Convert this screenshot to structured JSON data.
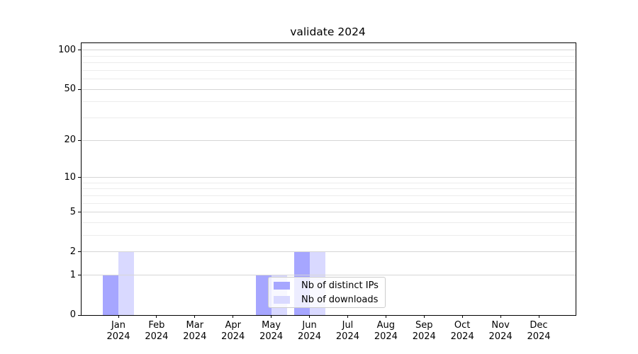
{
  "chart_data": {
    "type": "bar",
    "title": "validate 2024",
    "months": [
      "Jan",
      "Feb",
      "Mar",
      "Apr",
      "May",
      "Jun",
      "Jul",
      "Aug",
      "Sep",
      "Oct",
      "Nov",
      "Dec"
    ],
    "year": "2024",
    "series": [
      {
        "name": "Nb of distinct IPs",
        "color": "#a6a6ff",
        "values": [
          1,
          0,
          0,
          0,
          1,
          2,
          0,
          0,
          0,
          0,
          0,
          0
        ]
      },
      {
        "name": "Nb of downloads",
        "color": "#d9d9ff",
        "values": [
          2,
          0,
          0,
          0,
          1,
          2,
          0,
          0,
          0,
          0,
          0,
          0
        ]
      }
    ],
    "y_major_ticks": [
      0,
      1,
      2,
      5,
      10,
      20,
      50,
      100
    ],
    "y_minor_ticks": [
      3,
      4,
      6,
      7,
      8,
      9,
      30,
      40,
      60,
      70,
      80,
      90
    ],
    "ylim": [
      0,
      113
    ],
    "scale": "log1p",
    "grid": "both",
    "legend": {
      "entries": [
        "Nb of distinct IPs",
        "Nb of downloads"
      ],
      "position": "lower-center"
    }
  }
}
